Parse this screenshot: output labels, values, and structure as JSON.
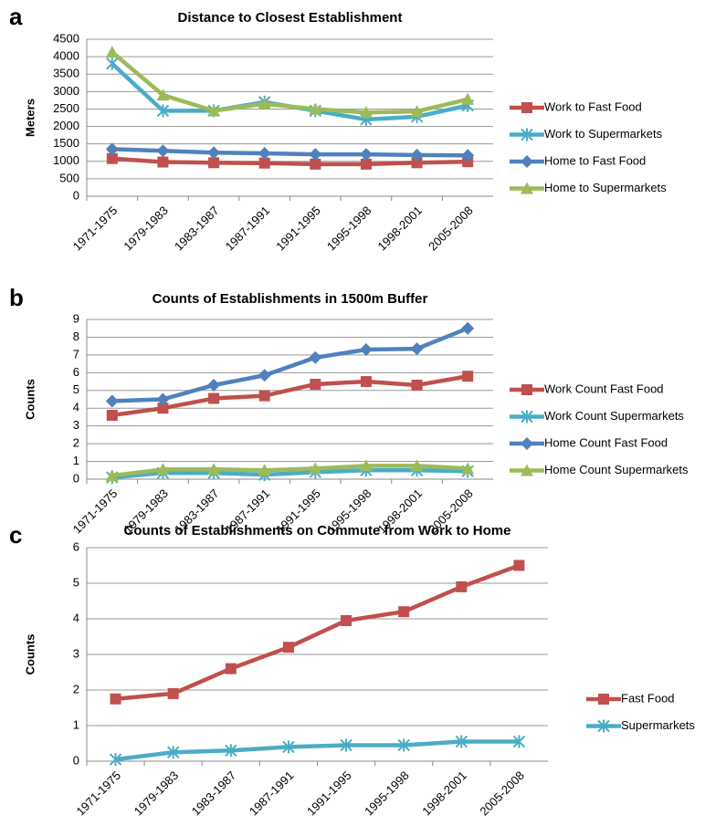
{
  "chart_data": [
    {
      "type": "line",
      "panel": "a",
      "title": "Distance to Closest Establishment",
      "y_label": "Meters",
      "categories": [
        "1971-1975",
        "1979-1983",
        "1983-1987",
        "1987-1991",
        "1991-1995",
        "1995-1998",
        "1998-2001",
        "2005-2008"
      ],
      "ylim": [
        0,
        4500
      ],
      "yticks": [
        0,
        500,
        1000,
        1500,
        2000,
        2500,
        3000,
        3500,
        4000,
        4500
      ],
      "grid": true,
      "series": [
        {
          "name": "Work to Fast Food",
          "color": "#c0504d",
          "marker": "square",
          "values": [
            1080,
            980,
            960,
            950,
            920,
            920,
            960,
            990
          ]
        },
        {
          "name": "Work to Supermarkets",
          "color": "#4bacc6",
          "marker": "x",
          "values": [
            3800,
            2450,
            2450,
            2700,
            2450,
            2200,
            2280,
            2600
          ]
        },
        {
          "name": "Home to Fast Food",
          "color": "#4f81bd",
          "marker": "diamond",
          "values": [
            1350,
            1300,
            1250,
            1230,
            1200,
            1200,
            1180,
            1170
          ]
        },
        {
          "name": "Home to Supermarkets",
          "color": "#9bbb59",
          "marker": "triangle",
          "values": [
            4130,
            2900,
            2450,
            2650,
            2500,
            2400,
            2430,
            2780
          ]
        }
      ]
    },
    {
      "type": "line",
      "panel": "b",
      "title": "Counts of Establishments in 1500m Buffer",
      "y_label": "Counts",
      "categories": [
        "1971-1975",
        "1979-1983",
        "1983-1987",
        "1987-1991",
        "1991-1995",
        "1995-1998",
        "1998-2001",
        "2005-2008"
      ],
      "ylim": [
        0,
        9
      ],
      "yticks": [
        0,
        1,
        2,
        3,
        4,
        5,
        6,
        7,
        8,
        9
      ],
      "grid": true,
      "series": [
        {
          "name": "Work Count Fast Food",
          "color": "#c0504d",
          "marker": "square",
          "values": [
            3.6,
            4.0,
            4.55,
            4.7,
            5.35,
            5.5,
            5.3,
            5.8
          ]
        },
        {
          "name": "Work Count Supermarkets",
          "color": "#4bacc6",
          "marker": "x",
          "values": [
            0.1,
            0.35,
            0.35,
            0.25,
            0.4,
            0.5,
            0.5,
            0.45
          ]
        },
        {
          "name": "Home Count Fast Food",
          "color": "#4f81bd",
          "marker": "diamond",
          "values": [
            4.4,
            4.5,
            5.3,
            5.85,
            6.85,
            7.3,
            7.35,
            8.5
          ]
        },
        {
          "name": "Home Count Supermarkets",
          "color": "#9bbb59",
          "marker": "triangle",
          "values": [
            0.2,
            0.55,
            0.55,
            0.5,
            0.6,
            0.75,
            0.75,
            0.6
          ]
        }
      ]
    },
    {
      "type": "line",
      "panel": "c",
      "title": "Counts of Establishments on Commute from Work to Home",
      "y_label": "Counts",
      "categories": [
        "1971-1975",
        "1979-1983",
        "1983-1987",
        "1987-1991",
        "1991-1995",
        "1995-1998",
        "1998-2001",
        "2005-2008"
      ],
      "ylim": [
        0,
        6
      ],
      "yticks": [
        0,
        1,
        2,
        3,
        4,
        5,
        6
      ],
      "grid": true,
      "series": [
        {
          "name": "Fast Food",
          "color": "#c0504d",
          "marker": "square",
          "values": [
            1.75,
            1.9,
            2.6,
            3.2,
            3.95,
            4.2,
            4.9,
            5.5
          ]
        },
        {
          "name": "Supermarkets",
          "color": "#4bacc6",
          "marker": "x",
          "values": [
            0.05,
            0.25,
            0.3,
            0.4,
            0.45,
            0.45,
            0.55,
            0.55
          ]
        }
      ]
    }
  ]
}
